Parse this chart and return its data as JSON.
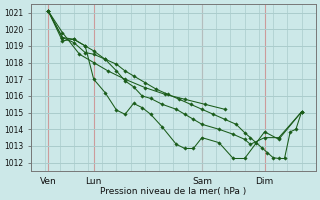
{
  "title": "Pression niveau de la mer( hPa )",
  "background_color": "#cce8e8",
  "grid_color": "#aacccc",
  "line_color": "#1a5c1a",
  "vline_color": "#cc8888",
  "ylim": [
    1011.5,
    1021.5
  ],
  "yticks": [
    1012,
    1013,
    1014,
    1015,
    1016,
    1017,
    1018,
    1019,
    1020,
    1021
  ],
  "xlim": [
    0,
    5.0
  ],
  "xtick_labels": [
    "Ven",
    "Lun",
    "Sam",
    "Dim"
  ],
  "xtick_positions": [
    0.3,
    1.1,
    3.0,
    4.1
  ],
  "vline_positions": [
    0.3,
    1.1,
    3.0,
    4.1
  ],
  "series": [
    [
      1021.1,
      1019.8,
      1018.5,
      1018.0,
      1017.5,
      1017.0,
      1016.5,
      1016.1,
      1015.8,
      1015.5,
      1015.2
    ],
    [
      1021.1,
      1019.5,
      1019.4,
      1019.0,
      1017.0,
      1016.2,
      1015.15,
      1014.9,
      1015.55,
      1015.3,
      1014.9,
      1014.15,
      1013.1,
      1012.85,
      1012.85,
      1013.5,
      1013.2,
      1012.25,
      1012.25,
      1013.85,
      1013.4,
      1015.05
    ],
    [
      1021.1,
      1019.3,
      1019.4,
      1019.0,
      1018.7,
      1018.2,
      1017.5,
      1016.9,
      1016.55,
      1016.0,
      1015.85,
      1015.5,
      1015.2,
      1014.9,
      1014.6,
      1014.3,
      1014.0,
      1013.7,
      1013.4,
      1013.1,
      1013.5,
      1013.5,
      1015.05
    ],
    [
      1021.1,
      1019.5,
      1019.2,
      1018.6,
      1018.5,
      1018.2,
      1017.9,
      1017.5,
      1017.2,
      1016.8,
      1016.4,
      1016.1,
      1015.8,
      1015.5,
      1015.2,
      1014.9,
      1014.6,
      1014.3,
      1013.8,
      1013.5,
      1013.2,
      1012.9,
      1012.6,
      1012.3,
      1012.25,
      1012.25,
      1013.85,
      1014.0,
      1015.05
    ]
  ],
  "series_x": [
    [
      0.3,
      0.55,
      0.85,
      1.1,
      1.35,
      1.65,
      2.0,
      2.35,
      2.7,
      3.05,
      3.4
    ],
    [
      0.3,
      0.55,
      0.75,
      0.95,
      1.1,
      1.3,
      1.5,
      1.65,
      1.8,
      1.95,
      2.1,
      2.3,
      2.55,
      2.7,
      2.85,
      3.0,
      3.3,
      3.55,
      3.75,
      4.1,
      4.35,
      4.75
    ],
    [
      0.3,
      0.55,
      0.75,
      0.95,
      1.1,
      1.3,
      1.5,
      1.65,
      1.8,
      1.95,
      2.1,
      2.3,
      2.55,
      2.7,
      2.85,
      3.0,
      3.3,
      3.55,
      3.75,
      3.85,
      4.1,
      4.35,
      4.75
    ],
    [
      0.3,
      0.55,
      0.75,
      0.95,
      1.1,
      1.3,
      1.5,
      1.65,
      1.8,
      2.0,
      2.2,
      2.4,
      2.6,
      2.8,
      3.0,
      3.2,
      3.4,
      3.6,
      3.75,
      3.85,
      3.95,
      4.05,
      4.15,
      4.25,
      4.35,
      4.45,
      4.55,
      4.65,
      4.75
    ]
  ]
}
